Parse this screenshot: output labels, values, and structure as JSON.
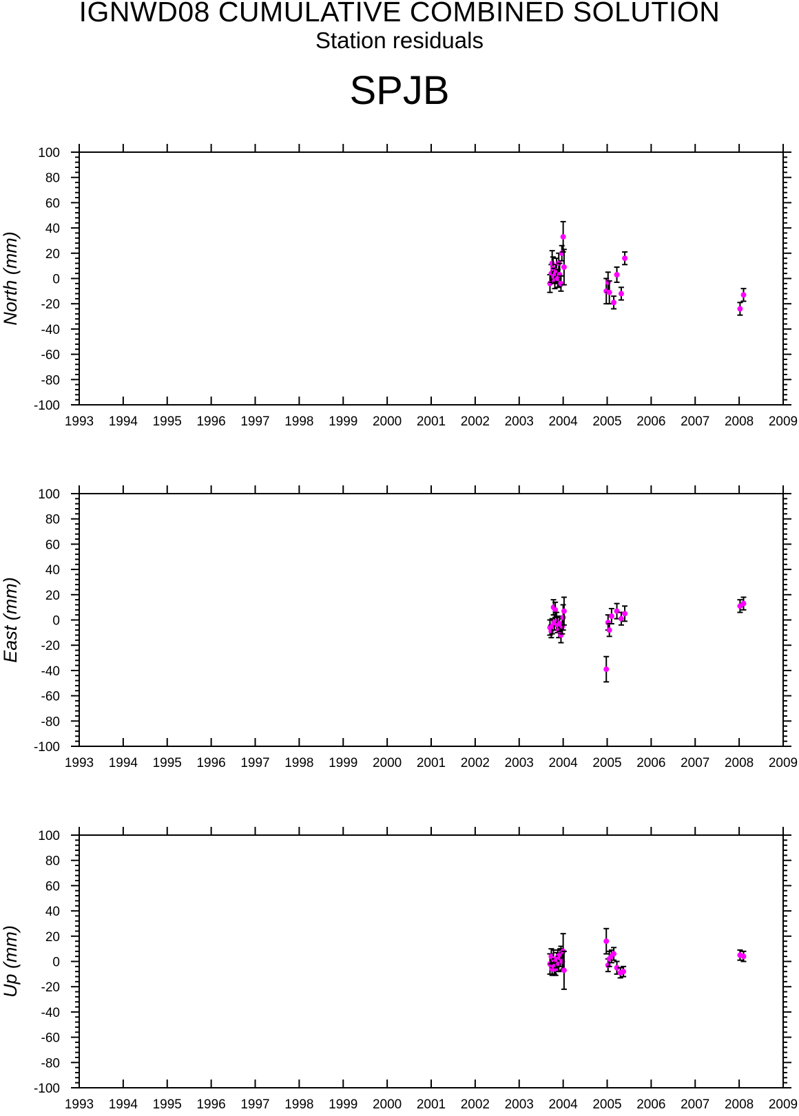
{
  "header": {
    "title": "IGNWD08 CUMULATIVE COMBINED SOLUTION",
    "subtitle": "Station residuals",
    "station": "SPJB"
  },
  "colors": {
    "point": "#ff00ff",
    "errorbar": "#000000",
    "axis": "#000000",
    "background": "#ffffff"
  },
  "chart_data": [
    {
      "type": "scatter",
      "ylabel": "North (mm)",
      "xlabel": "",
      "xlim": [
        1993,
        2009
      ],
      "ylim": [
        -100,
        100
      ],
      "xticks": [
        "1993",
        "1994",
        "1995",
        "1996",
        "1997",
        "1998",
        "1999",
        "2000",
        "2001",
        "2002",
        "2003",
        "2004",
        "2005",
        "2006",
        "2007",
        "2008",
        "2009"
      ],
      "yticks": [
        "100",
        "80",
        "60",
        "40",
        "20",
        "0",
        "-20",
        "-40",
        "-60",
        "-80",
        "-100"
      ],
      "error_bars": true,
      "series": [
        {
          "x": [
            2003.7,
            2003.73,
            2003.75,
            2003.77,
            2003.79,
            2003.81,
            2003.83,
            2003.85,
            2003.88,
            2003.9,
            2003.92,
            2003.95,
            2003.97,
            2004.0,
            2004.02,
            2004.98,
            2005.02,
            2005.05,
            2005.15,
            2005.22,
            2005.32,
            2005.4,
            2008.02,
            2008.1
          ],
          "y": [
            -4,
            4,
            12,
            8,
            2,
            -2,
            4,
            6,
            0,
            12,
            3,
            -4,
            20,
            33,
            9,
            -10,
            -3,
            -11,
            -19,
            3,
            -12,
            16,
            -24,
            -13
          ],
          "err": [
            7,
            7,
            10,
            9,
            6,
            6,
            7,
            10,
            7,
            8,
            9,
            6,
            6,
            12,
            14,
            10,
            8,
            9,
            5,
            6,
            5,
            5,
            5,
            5
          ]
        }
      ]
    },
    {
      "type": "scatter",
      "ylabel": "East (mm)",
      "xlabel": "",
      "xlim": [
        1993,
        2009
      ],
      "ylim": [
        -100,
        100
      ],
      "xticks": [
        "1993",
        "1994",
        "1995",
        "1996",
        "1997",
        "1998",
        "1999",
        "2000",
        "2001",
        "2002",
        "2003",
        "2004",
        "2005",
        "2006",
        "2007",
        "2008",
        "2009"
      ],
      "yticks": [
        "100",
        "80",
        "60",
        "40",
        "20",
        "0",
        "-20",
        "-40",
        "-60",
        "-80",
        "-100"
      ],
      "error_bars": true,
      "series": [
        {
          "x": [
            2003.7,
            2003.73,
            2003.75,
            2003.78,
            2003.8,
            2003.82,
            2003.85,
            2003.87,
            2003.9,
            2003.92,
            2003.95,
            2003.98,
            2004.0,
            2004.02,
            2004.98,
            2005.02,
            2005.05,
            2005.1,
            2005.22,
            2005.32,
            2005.4,
            2008.02,
            2008.1
          ],
          "y": [
            -6,
            -9,
            -5,
            10,
            -2,
            8,
            -1,
            -4,
            -8,
            -3,
            -12,
            -5,
            2,
            7,
            -39,
            -2,
            -8,
            3,
            7,
            1,
            5,
            11,
            13
          ],
          "err": [
            6,
            5,
            6,
            6,
            6,
            6,
            7,
            6,
            6,
            6,
            6,
            6,
            10,
            11,
            10,
            6,
            5,
            6,
            6,
            5,
            6,
            5,
            5
          ]
        }
      ]
    },
    {
      "type": "scatter",
      "ylabel": "Up (mm)",
      "xlabel": "",
      "xlim": [
        1993,
        2009
      ],
      "ylim": [
        -100,
        100
      ],
      "xticks": [
        "1993",
        "1994",
        "1995",
        "1996",
        "1997",
        "1998",
        "1999",
        "2000",
        "2001",
        "2002",
        "2003",
        "2004",
        "2005",
        "2006",
        "2007",
        "2008",
        "2009"
      ],
      "yticks": [
        "100",
        "80",
        "60",
        "40",
        "20",
        "0",
        "-20",
        "-40",
        "-60",
        "-80",
        "-100"
      ],
      "error_bars": true,
      "series": [
        {
          "x": [
            2003.7,
            2003.73,
            2003.75,
            2003.78,
            2003.8,
            2003.83,
            2003.85,
            2003.88,
            2003.9,
            2003.93,
            2003.95,
            2003.98,
            2004.0,
            2004.02,
            2004.98,
            2005.02,
            2005.05,
            2005.1,
            2005.15,
            2005.22,
            2005.3,
            2005.37,
            2008.02,
            2008.1
          ],
          "y": [
            -2,
            4,
            -6,
            2,
            -4,
            -6,
            1,
            4,
            -2,
            3,
            6,
            0,
            8,
            -7,
            16,
            -3,
            2,
            4,
            6,
            -5,
            -9,
            -8,
            5,
            4
          ],
          "err": [
            8,
            6,
            5,
            7,
            6,
            5,
            6,
            5,
            6,
            7,
            6,
            7,
            14,
            15,
            10,
            5,
            6,
            5,
            5,
            5,
            4,
            4,
            4,
            4
          ]
        }
      ]
    }
  ]
}
